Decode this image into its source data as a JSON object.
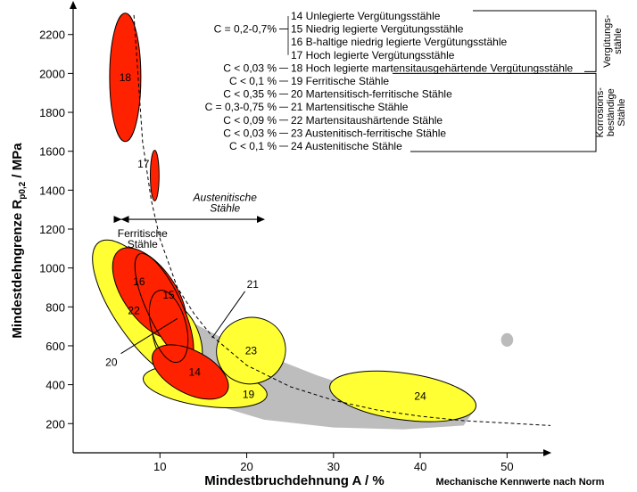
{
  "chart_data": {
    "type": "scatter",
    "title": "",
    "xlabel": "Mindestbruchdehnung A / %",
    "ylabel_main": "Mindestdehngrenze R",
    "ylabel_sub": "p0,2",
    "ylabel_unit": " / MPa",
    "note": "Mechanische Kennwerte nach Norm",
    "xlim": [
      0,
      55
    ],
    "ylim": [
      50,
      2350
    ],
    "x_ticks": [
      "10",
      "20",
      "30",
      "40",
      "50"
    ],
    "y_ticks": [
      "200",
      "400",
      "600",
      "800",
      "1000",
      "1200",
      "1400",
      "1600",
      "1800",
      "2000",
      "2200"
    ],
    "grid": false,
    "regions": [
      {
        "label": "22",
        "color": "#ffff33",
        "cx": 8.5,
        "cy": 780,
        "rx": 3.6,
        "ry": 430,
        "rot": -35
      },
      {
        "label": "19",
        "color": "#ffff33",
        "cx": 15.2,
        "cy": 390,
        "rx": 7.2,
        "ry": 100,
        "rot": 8
      },
      {
        "label": "23",
        "color": "#ffff33",
        "cx": 20.5,
        "cy": 575,
        "rx": 4.0,
        "ry": 170,
        "rot": -20
      },
      {
        "label": "24",
        "color": "#ffff33",
        "cx": 38.0,
        "cy": 340,
        "rx": 8.5,
        "ry": 120,
        "rot": 8
      },
      {
        "label": "20",
        "color": "#ffff33",
        "cx": 12.0,
        "cy": 630,
        "rx": 2.6,
        "ry": 200,
        "rot": -20
      },
      {
        "label": "18",
        "color": "#ff2200",
        "cx": 6.0,
        "cy": 1980,
        "rx": 1.8,
        "ry": 330,
        "rot": 0
      },
      {
        "label": "17",
        "color": "#ff2200",
        "cx": 9.4,
        "cy": 1475,
        "rx": 0.5,
        "ry": 130,
        "rot": 0
      },
      {
        "label": "16",
        "color": "#ff2200",
        "cx": 8.8,
        "cy": 870,
        "rx": 3.0,
        "ry": 270,
        "rot": -35
      },
      {
        "label": "15",
        "color": "#ff2200",
        "cx": 10.5,
        "cy": 800,
        "rx": 2.0,
        "ry": 300,
        "rot": -25
      },
      {
        "label": "14",
        "color": "#ff2200",
        "cx": 13.5,
        "cy": 465,
        "rx": 4.8,
        "ry": 110,
        "rot": 28
      },
      {
        "label": "21",
        "color": "none",
        "cx": 11.0,
        "cy": 700,
        "rx": 2.0,
        "ry": 190,
        "rot": -15
      },
      {
        "label": "",
        "color": "#bbbbbb",
        "cx": 50.0,
        "cy": 630,
        "rx": 0.7,
        "ry": 35,
        "rot": 0
      }
    ],
    "norm_curve": [
      [
        7.0,
        2300
      ],
      [
        8,
        1650
      ],
      [
        9,
        1350
      ],
      [
        10,
        1150
      ],
      [
        12,
        900
      ],
      [
        14,
        760
      ],
      [
        16,
        650
      ],
      [
        20,
        500
      ],
      [
        25,
        390
      ],
      [
        30,
        320
      ],
      [
        35,
        270
      ],
      [
        40,
        238
      ],
      [
        45,
        215
      ],
      [
        55,
        190
      ]
    ],
    "range_arrow": {
      "x_from": 5.5,
      "x_to": 22.0,
      "y": 1250
    },
    "range_labels": [
      {
        "text": [
          "Austenitische",
          "Stähle"
        ],
        "x": 17.5,
        "y": 1280,
        "italic": true
      },
      {
        "text": [
          "Ferritische",
          "Stähle"
        ],
        "x": 8.0,
        "y": 1195,
        "italic": false
      }
    ],
    "callouts": [
      {
        "label": "21",
        "from": [
          16.0,
          640
        ],
        "to": [
          19.8,
          880
        ]
      },
      {
        "label": "20",
        "from": [
          12.0,
          740
        ],
        "to": [
          5.5,
          560
        ]
      }
    ],
    "legend": {
      "entries": [
        {
          "carbon": "",
          "label": "14 Unlegierte Vergütungsstähle"
        },
        {
          "carbon": "C = 0,2-0,7%",
          "label": "15 Niedrig legierte Vergütungsstähle"
        },
        {
          "carbon": "",
          "label": "16 B-haltige niedrig legierte Vergütungsstähle"
        },
        {
          "carbon": "",
          "label": "17 Hoch legierte Vergütungsstähle"
        },
        {
          "carbon": "C < 0,03 %",
          "label": "18 Hoch legierte martensitausgehärtende Vergütungsstähle"
        },
        {
          "carbon": "C < 0,1 %",
          "label": "19 Ferritische Stähle"
        },
        {
          "carbon": "C < 0,35 %",
          "label": "20 Martensitisch-ferritische Stähle"
        },
        {
          "carbon": "C = 0,3-0,75 %",
          "label": "21 Martensitische Stähle"
        },
        {
          "carbon": "C < 0,09 %",
          "label": "22 Martensitaushärtende Stähle"
        },
        {
          "carbon": "C < 0,03 %",
          "label": "23 Austenitisch-ferritische Stähle"
        },
        {
          "carbon": "C < 0,1 %",
          "label": "24 Austenitische Stähle"
        }
      ],
      "groups": [
        {
          "label": [
            "Vergütungs-",
            "stähle"
          ]
        },
        {
          "label": [
            "Korrosions-",
            "beständige",
            "Stähle"
          ]
        }
      ]
    }
  }
}
